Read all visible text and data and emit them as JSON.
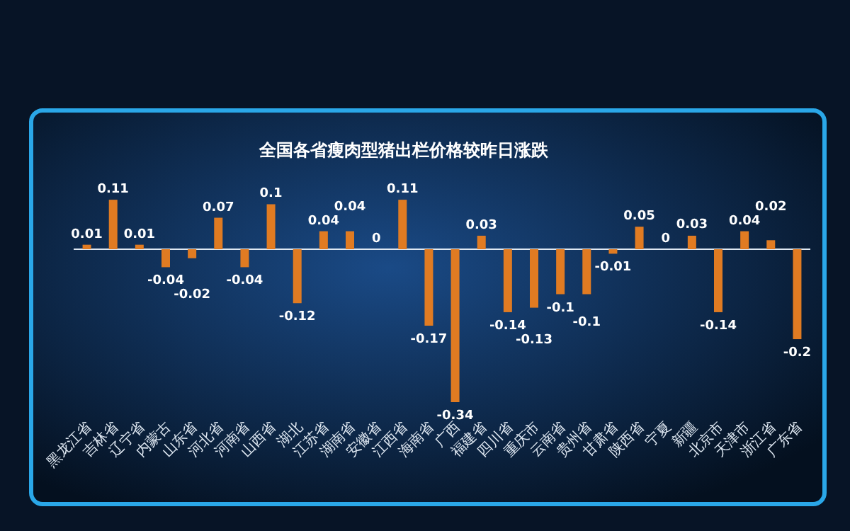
{
  "chart_data": {
    "type": "bar",
    "title": "全国各省瘦肉型猪出栏价格较昨日涨跌",
    "categories": [
      "黑龙江省",
      "吉林省",
      "辽宁省",
      "内蒙古",
      "山东省",
      "河北省",
      "河南省",
      "山西省",
      "湖北",
      "江苏省",
      "湖南省",
      "安徽省",
      "江西省",
      "海南省",
      "广西",
      "福建省",
      "四川省",
      "重庆市",
      "云南省",
      "贵州省",
      "甘肃省",
      "陕西省",
      "宁夏",
      "新疆",
      "北京市",
      "天津市",
      "浙江省",
      "广东省"
    ],
    "values": [
      0.01,
      0.11,
      0.01,
      -0.04,
      -0.02,
      0.07,
      -0.04,
      0.1,
      -0.12,
      0.04,
      0.04,
      0,
      0.11,
      -0.17,
      -0.34,
      0.03,
      -0.14,
      -0.13,
      -0.1,
      -0.1,
      -0.01,
      0.05,
      0,
      0.03,
      -0.14,
      0.04,
      0.02,
      -0.2
    ],
    "color": "#e07b22",
    "data_labels": true
  }
}
